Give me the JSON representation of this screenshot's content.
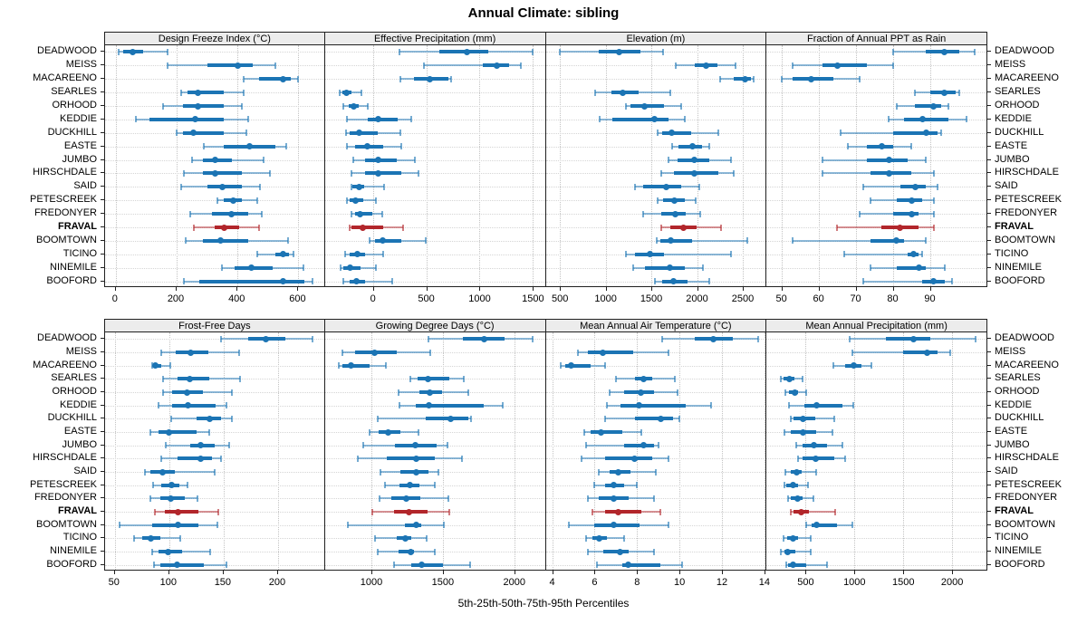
{
  "title": "Annual Climate: sibling",
  "xlabel": "5th-25th-50th-75th-95th Percentiles",
  "stations": [
    "DEADWOOD",
    "MEISS",
    "MACAREENO",
    "SEARLES",
    "ORHOOD",
    "KEDDIE",
    "DUCKHILL",
    "EASTE",
    "JUMBO",
    "HIRSCHDALE",
    "SAID",
    "PETESCREEK",
    "FREDONYER",
    "FRAVAL",
    "BOOMTOWN",
    "TICINO",
    "NINEMILE",
    "BOOFORD"
  ],
  "highlight_station": "FRAVAL",
  "colors": {
    "blue": "#1b74b4",
    "red": "#b2262b",
    "header_bg": "#ececec",
    "panel_border": "#202020",
    "gridline": "#c3c3c3",
    "row_guide": "#d5d5d5",
    "text": "#000000"
  },
  "chart_data": {
    "type": "scatter",
    "subtype": "percentile-interval-dotplot-trellis",
    "percentiles": [
      5,
      25,
      50,
      75,
      95
    ],
    "legend": "none",
    "grid": "dotted",
    "panels": [
      {
        "title": "Design Freeze Index (°C)",
        "row": 0,
        "col": 0,
        "domain": [
          -35,
          690
        ],
        "ticks": [
          0,
          200,
          400,
          600
        ],
        "values": [
          [
            10,
            25,
            55,
            90,
            170
          ],
          [
            170,
            300,
            400,
            450,
            525
          ],
          [
            420,
            470,
            550,
            575,
            600
          ],
          [
            215,
            235,
            270,
            355,
            420
          ],
          [
            155,
            220,
            270,
            355,
            415
          ],
          [
            65,
            110,
            260,
            355,
            435
          ],
          [
            200,
            220,
            255,
            355,
            430
          ],
          [
            290,
            355,
            440,
            525,
            560
          ],
          [
            250,
            285,
            325,
            380,
            485
          ],
          [
            225,
            285,
            325,
            415,
            505
          ],
          [
            215,
            300,
            350,
            415,
            475
          ],
          [
            335,
            355,
            385,
            415,
            465
          ],
          [
            245,
            315,
            380,
            435,
            480
          ],
          [
            255,
            325,
            355,
            405,
            470
          ],
          [
            230,
            285,
            345,
            435,
            565
          ],
          [
            465,
            525,
            550,
            570,
            585
          ],
          [
            350,
            390,
            445,
            515,
            615
          ],
          [
            225,
            275,
            550,
            620,
            645
          ]
        ]
      },
      {
        "title": "Effective Precipitation (mm)",
        "row": 0,
        "col": 1,
        "domain": [
          -450,
          1620
        ],
        "ticks": [
          0,
          500,
          1000,
          1500
        ],
        "values": [
          [
            250,
            620,
            880,
            1080,
            1500
          ],
          [
            480,
            1030,
            1165,
            1280,
            1390
          ],
          [
            255,
            385,
            530,
            705,
            735
          ],
          [
            -315,
            -290,
            -245,
            -205,
            -110
          ],
          [
            -280,
            -230,
            -180,
            -130,
            -45
          ],
          [
            -245,
            -45,
            50,
            230,
            360
          ],
          [
            -255,
            -220,
            -130,
            45,
            255
          ],
          [
            -245,
            -170,
            -50,
            95,
            265
          ],
          [
            -185,
            -70,
            45,
            220,
            390
          ],
          [
            -205,
            -70,
            45,
            265,
            425
          ],
          [
            -205,
            -195,
            -130,
            -85,
            100
          ],
          [
            -240,
            -215,
            -160,
            -95,
            25
          ],
          [
            -205,
            -170,
            -120,
            -10,
            85
          ],
          [
            -220,
            -205,
            -95,
            95,
            280
          ],
          [
            -35,
            15,
            95,
            265,
            495
          ],
          [
            -265,
            -220,
            -145,
            -70,
            95
          ],
          [
            -300,
            -280,
            -215,
            -120,
            25
          ],
          [
            -275,
            -215,
            -155,
            -75,
            180
          ]
        ]
      },
      {
        "title": "Elevation (m)",
        "row": 0,
        "col": 2,
        "domain": [
          345,
          2760
        ],
        "ticks": [
          500,
          1000,
          1500,
          2000,
          2500
        ],
        "values": [
          [
            500,
            925,
            1150,
            1380,
            1630
          ],
          [
            1770,
            1975,
            2100,
            2225,
            2425
          ],
          [
            2250,
            2400,
            2525,
            2590,
            2620
          ],
          [
            885,
            1065,
            1185,
            1365,
            1710
          ],
          [
            1225,
            1275,
            1420,
            1640,
            1830
          ],
          [
            935,
            1075,
            1530,
            1690,
            1870
          ],
          [
            1570,
            1620,
            1720,
            1940,
            2235
          ],
          [
            1730,
            1800,
            1950,
            2050,
            2135
          ],
          [
            1690,
            1790,
            1970,
            2135,
            2375
          ],
          [
            1610,
            1750,
            1970,
            2235,
            2405
          ],
          [
            1325,
            1410,
            1660,
            1825,
            2020
          ],
          [
            1570,
            1630,
            1750,
            1870,
            1985
          ],
          [
            1410,
            1605,
            1760,
            1875,
            2035
          ],
          [
            1605,
            1705,
            1850,
            1990,
            2265
          ],
          [
            1555,
            1595,
            1715,
            1950,
            2545
          ],
          [
            1225,
            1325,
            1480,
            1640,
            2370
          ],
          [
            1300,
            1425,
            1700,
            1870,
            2065
          ],
          [
            1540,
            1620,
            1745,
            1900,
            2135
          ]
        ]
      },
      {
        "title": "Fraction of Annual PPT as Rain",
        "row": 0,
        "col": 3,
        "domain": [
          46,
          105.5
        ],
        "ticks": [
          50,
          60,
          70,
          80,
          90
        ],
        "values": [
          [
            80,
            89,
            94,
            98,
            102
          ],
          [
            53,
            61,
            65,
            73,
            80
          ],
          [
            50,
            53,
            58,
            64,
            71
          ],
          [
            86,
            90,
            94,
            97,
            98
          ],
          [
            81,
            86,
            91,
            93,
            95
          ],
          [
            79,
            83,
            88,
            95,
            100
          ],
          [
            66,
            80,
            89,
            92,
            93
          ],
          [
            68,
            73,
            77,
            80,
            85
          ],
          [
            61,
            73,
            79,
            84,
            89
          ],
          [
            61,
            74,
            79,
            85,
            91
          ],
          [
            72,
            82,
            86,
            89,
            92
          ],
          [
            74,
            81,
            85,
            88,
            91
          ],
          [
            71,
            80,
            85,
            87,
            91
          ],
          [
            65,
            77,
            82,
            87,
            91
          ],
          [
            53,
            74,
            81,
            83,
            89
          ],
          [
            67,
            84,
            85.5,
            87,
            88
          ],
          [
            74,
            81,
            87,
            89,
            94
          ],
          [
            72,
            88,
            91,
            94,
            96
          ]
        ]
      },
      {
        "title": "Frost-Free Days",
        "row": 1,
        "col": 0,
        "domain": [
          41,
          244
        ],
        "ticks": [
          50,
          100,
          150,
          200
        ],
        "values": [
          [
            148,
            173,
            189,
            207,
            232
          ],
          [
            93,
            106,
            120,
            136,
            164
          ],
          [
            84,
            85,
            87,
            93,
            101
          ],
          [
            94,
            108,
            119,
            137,
            165
          ],
          [
            94,
            103,
            116,
            131,
            158
          ],
          [
            90,
            103,
            117,
            143,
            153
          ],
          [
            102,
            125,
            137,
            148,
            158
          ],
          [
            83,
            90,
            100,
            125,
            137
          ],
          [
            97,
            119,
            129,
            142,
            155
          ],
          [
            93,
            108,
            129,
            139,
            148
          ],
          [
            78,
            83,
            94,
            105,
            142
          ],
          [
            85,
            93,
            102,
            109,
            117
          ],
          [
            83,
            92,
            101,
            114,
            126
          ],
          [
            87,
            96,
            108,
            127,
            145
          ],
          [
            54,
            84,
            108,
            127,
            144
          ],
          [
            68,
            75,
            83,
            92,
            110
          ],
          [
            84,
            90,
            99,
            112,
            138
          ],
          [
            86,
            92,
            107,
            132,
            153
          ]
        ]
      },
      {
        "title": "Growing Degree Days (°C)",
        "row": 1,
        "col": 1,
        "domain": [
          675,
          2220
        ],
        "ticks": [
          1000,
          1500,
          2000
        ],
        "values": [
          [
            1400,
            1640,
            1790,
            1930,
            2130
          ],
          [
            800,
            885,
            1020,
            1175,
            1415
          ],
          [
            770,
            800,
            855,
            990,
            1100
          ],
          [
            1270,
            1325,
            1395,
            1545,
            1645
          ],
          [
            1190,
            1335,
            1410,
            1495,
            1680
          ],
          [
            1195,
            1310,
            1400,
            1785,
            1920
          ],
          [
            1045,
            1380,
            1555,
            1675,
            1700
          ],
          [
            985,
            1050,
            1120,
            1200,
            1330
          ],
          [
            940,
            1165,
            1305,
            1455,
            1530
          ],
          [
            905,
            1105,
            1315,
            1445,
            1635
          ],
          [
            1065,
            1200,
            1315,
            1400,
            1470
          ],
          [
            1095,
            1195,
            1270,
            1335,
            1445
          ],
          [
            1055,
            1140,
            1245,
            1340,
            1540
          ],
          [
            1005,
            1160,
            1260,
            1390,
            1545
          ],
          [
            835,
            1235,
            1315,
            1350,
            1510
          ],
          [
            1025,
            1180,
            1235,
            1280,
            1385
          ],
          [
            1045,
            1190,
            1275,
            1295,
            1445
          ],
          [
            1160,
            1280,
            1350,
            1500,
            1690
          ]
        ]
      },
      {
        "title": "Mean Annual Air Temperature (°C)",
        "row": 1,
        "col": 2,
        "domain": [
          3.7,
          14.1
        ],
        "ticks": [
          4,
          6,
          8,
          10,
          12,
          14
        ],
        "values": [
          [
            9.2,
            10.7,
            11.6,
            12.5,
            13.7
          ],
          [
            5.2,
            5.7,
            6.4,
            7.8,
            9.5
          ],
          [
            4.4,
            4.6,
            4.9,
            5.8,
            6.5
          ],
          [
            7.0,
            7.9,
            8.3,
            8.7,
            9.8
          ],
          [
            6.7,
            7.4,
            8.2,
            8.8,
            9.9
          ],
          [
            6.6,
            7.2,
            8.1,
            10.3,
            11.5
          ],
          [
            6.5,
            7.9,
            9.1,
            9.7,
            10.0
          ],
          [
            5.5,
            5.8,
            6.3,
            7.3,
            8.2
          ],
          [
            5.6,
            7.4,
            8.3,
            8.8,
            9.0
          ],
          [
            5.4,
            6.5,
            7.9,
            8.7,
            9.5
          ],
          [
            6.2,
            6.7,
            7.1,
            7.7,
            8.9
          ],
          [
            6.0,
            6.5,
            6.9,
            7.4,
            8.0
          ],
          [
            5.7,
            6.2,
            6.9,
            7.6,
            8.8
          ],
          [
            5.9,
            6.5,
            7.1,
            8.2,
            9.1
          ],
          [
            4.8,
            6.0,
            6.9,
            8.1,
            9.5
          ],
          [
            5.6,
            5.9,
            6.2,
            6.6,
            7.4
          ],
          [
            5.7,
            6.4,
            7.2,
            7.6,
            8.8
          ],
          [
            6.1,
            7.3,
            7.6,
            9.1,
            10.1
          ]
        ]
      },
      {
        "title": "Mean Annual Precipitation (mm)",
        "row": 1,
        "col": 3,
        "domain": [
          100,
          2360
        ],
        "ticks": [
          500,
          1000,
          1500,
          2000
        ],
        "values": [
          [
            950,
            1320,
            1600,
            1780,
            2240
          ],
          [
            980,
            1495,
            1745,
            1850,
            1980
          ],
          [
            785,
            900,
            995,
            1070,
            1175
          ],
          [
            250,
            275,
            330,
            385,
            470
          ],
          [
            290,
            330,
            390,
            425,
            505
          ],
          [
            330,
            490,
            610,
            875,
            985
          ],
          [
            350,
            375,
            475,
            600,
            795
          ],
          [
            285,
            345,
            470,
            610,
            775
          ],
          [
            400,
            465,
            585,
            720,
            875
          ],
          [
            425,
            465,
            600,
            795,
            905
          ],
          [
            290,
            345,
            405,
            455,
            610
          ],
          [
            280,
            305,
            370,
            425,
            520
          ],
          [
            320,
            350,
            415,
            465,
            580
          ],
          [
            345,
            375,
            455,
            530,
            805
          ],
          [
            505,
            560,
            610,
            825,
            980
          ],
          [
            270,
            310,
            370,
            425,
            550
          ],
          [
            250,
            280,
            320,
            390,
            555
          ],
          [
            300,
            320,
            375,
            505,
            715
          ]
        ]
      }
    ]
  }
}
